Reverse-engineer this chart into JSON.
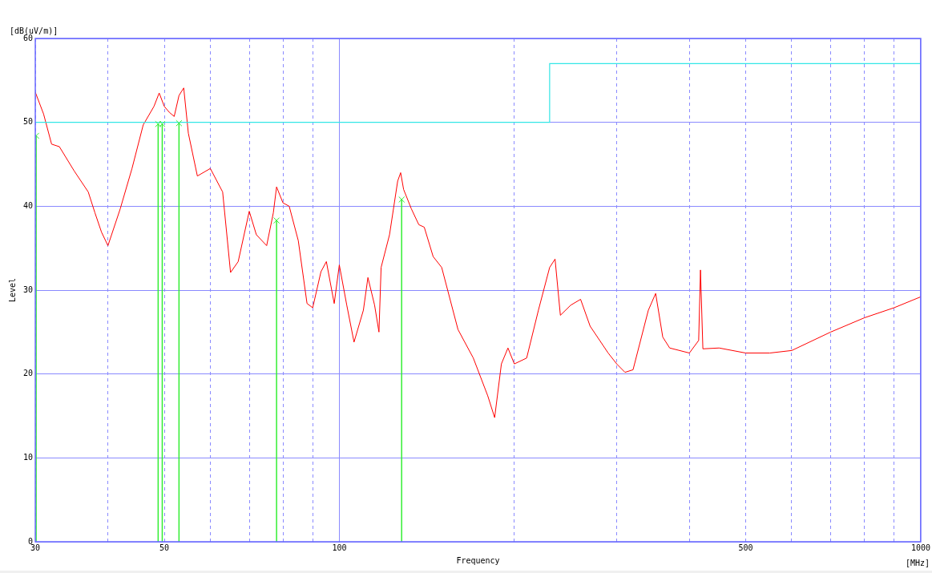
{
  "chart_data": {
    "type": "line",
    "xlabel": "Frequency",
    "ylabel": "Level",
    "annotations": [
      "[dB(uV/m)]",
      "[MHz]"
    ],
    "log": "x",
    "grid": true,
    "legend": false,
    "line_style": "solid",
    "marker": "none",
    "xlim": [
      30,
      1000
    ],
    "xticks": [
      30,
      {
        "value": 40,
        "label": null
      },
      50,
      {
        "value": 60,
        "label": null
      },
      {
        "value": 70,
        "label": null
      },
      {
        "value": 80,
        "label": null
      },
      {
        "value": 90,
        "label": null
      },
      100,
      {
        "value": 200,
        "label": null
      },
      {
        "value": 300,
        "label": null
      },
      {
        "value": 400,
        "label": null
      },
      500,
      {
        "value": 600,
        "label": null
      },
      {
        "value": 700,
        "label": null
      },
      {
        "value": 800,
        "label": null
      },
      {
        "value": 900,
        "label": null
      },
      1000
    ],
    "ylim": [
      0,
      60
    ],
    "yticks": [
      0,
      10,
      20,
      30,
      40,
      50,
      60
    ],
    "series": [
      {
        "color": "#ff0000",
        "x": [
          30,
          31,
          32,
          33,
          35,
          37,
          38,
          39,
          40,
          42,
          44,
          46,
          48,
          49,
          50,
          51,
          52,
          53,
          54,
          55,
          57,
          60,
          63,
          65,
          67,
          70,
          72,
          75,
          77,
          78,
          80,
          82,
          85,
          88,
          90,
          93,
          95,
          98,
          100,
          103,
          106,
          110,
          112,
          115,
          117,
          118,
          122,
          126,
          127.5,
          129,
          133,
          137,
          140,
          145,
          150,
          160,
          170,
          180,
          185,
          190,
          195,
          200,
          210,
          220,
          230,
          235,
          240,
          250,
          260,
          270,
          290,
          300,
          310,
          320,
          340,
          350,
          360,
          370,
          400,
          415,
          418,
          422,
          450,
          500,
          550,
          600,
          700,
          800,
          900,
          1000
        ],
        "values": [
          53.6,
          51,
          47.4,
          47.1,
          44.2,
          41.7,
          39.2,
          36.9,
          35.3,
          39.7,
          44.5,
          49.7,
          51.9,
          53.5,
          51.9,
          51.2,
          50.7,
          53.2,
          54.1,
          48.7,
          43.6,
          44.5,
          41.7,
          32.1,
          33.4,
          39.4,
          36.6,
          35.3,
          39.2,
          42.3,
          40.4,
          40,
          35.9,
          28.4,
          27.9,
          32.2,
          33.4,
          28.4,
          33,
          28.2,
          23.8,
          27.6,
          31.5,
          28.2,
          25,
          32.7,
          36.6,
          43,
          44,
          42,
          39.7,
          37.8,
          37.5,
          34,
          32.7,
          25.3,
          21.9,
          17.4,
          14.8,
          21.2,
          23.1,
          21.2,
          21.9,
          27.6,
          32.7,
          33.7,
          27,
          28.2,
          28.9,
          25.7,
          22.5,
          21.2,
          20.2,
          20.5,
          27.6,
          29.6,
          24.4,
          23.1,
          22.5,
          24,
          32.4,
          23,
          23.1,
          22.5,
          22.5,
          22.8,
          25,
          26.7,
          27.9,
          29.2
        ]
      },
      {
        "type": "step",
        "color": "#33e6e6",
        "x": [
          30,
          230,
          1000
        ],
        "values": [
          50,
          57,
          57
        ]
      },
      {
        "type": "lollipop",
        "color": "#33ee33",
        "marker": "cross",
        "x": [
          30.1,
          48.8,
          49.6,
          53,
          78,
          128
        ],
        "values": [
          48.4,
          49.8,
          49.8,
          49.9,
          38.3,
          40.8
        ]
      }
    ]
  }
}
